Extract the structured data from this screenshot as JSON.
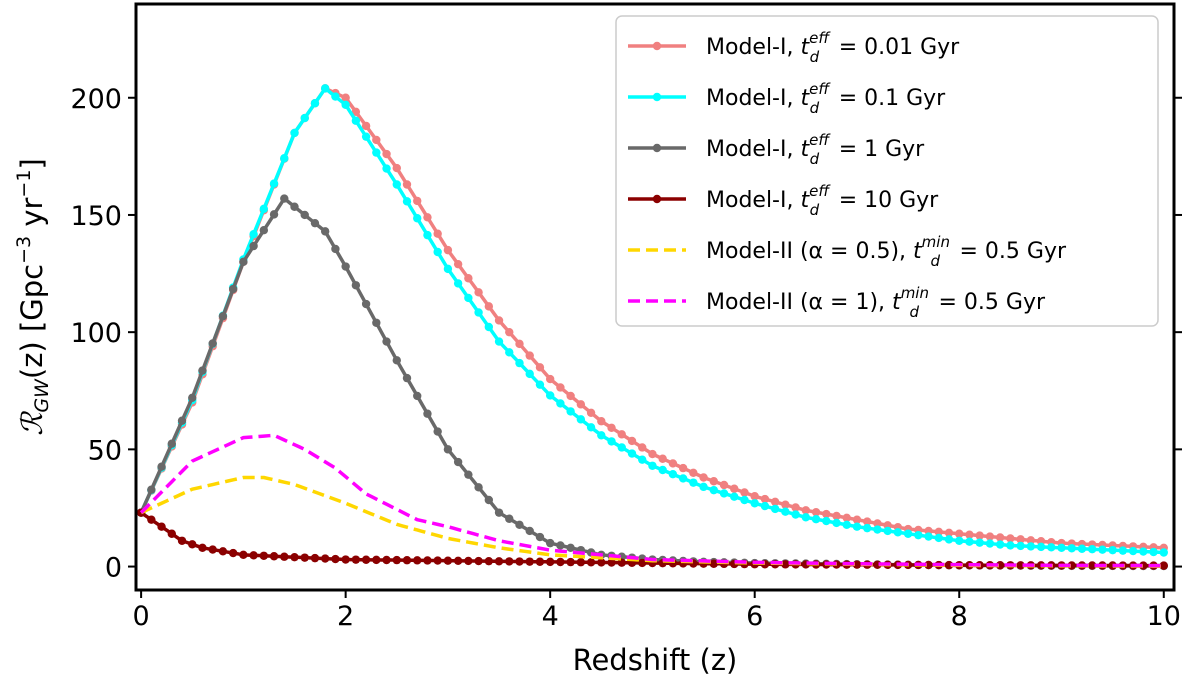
{
  "chart_data": {
    "type": "line",
    "xlabel": "Redshift (z)",
    "ylabel_main": "ℛ",
    "ylabel_sub": "GW",
    "ylabel_rest": "(z) [Gpc",
    "ylabel_exp1": "−3",
    "ylabel_mid": " yr",
    "ylabel_exp2": "−1",
    "ylabel_end": "]",
    "xlim": [
      -0.05,
      10.1
    ],
    "ylim": [
      -10,
      240
    ],
    "xticks": [
      0,
      2,
      4,
      6,
      8,
      10
    ],
    "yticks": [
      0,
      50,
      100,
      150,
      200
    ],
    "x_tick_labels": [
      "0",
      "2",
      "4",
      "6",
      "8",
      "10"
    ],
    "y_tick_labels": [
      "0",
      "50",
      "100",
      "150",
      "200"
    ],
    "legend_position": "top-right",
    "grid": false,
    "series": [
      {
        "legend_parts": [
          "Model-I, ",
          "t",
          "eff",
          "d",
          " = 0.01 Gyr"
        ],
        "color": "#f08080",
        "style": "solid-markers",
        "x": [
          0,
          0.5,
          1.0,
          1.5,
          1.8,
          2.0,
          2.5,
          3.0,
          3.5,
          4.0,
          4.5,
          5.0,
          5.5,
          6.0,
          6.5,
          7.0,
          7.5,
          8.0,
          8.5,
          9.0,
          9.5,
          10.0
        ],
        "y": [
          23,
          70,
          130,
          185,
          204,
          200,
          170,
          135,
          105,
          80,
          62,
          48,
          38,
          30,
          24,
          20,
          16,
          14,
          12,
          10,
          9,
          8
        ]
      },
      {
        "legend_parts": [
          "Model-I, ",
          "t",
          "eff",
          "d",
          " = 0.1 Gyr"
        ],
        "color": "#00ffff",
        "style": "solid-markers",
        "x": [
          0,
          0.5,
          1.0,
          1.5,
          1.8,
          2.0,
          2.5,
          3.0,
          3.5,
          4.0,
          4.5,
          5.0,
          5.5,
          6.0,
          6.5,
          7.0,
          7.5,
          8.0,
          8.5,
          9.0,
          9.5,
          10.0
        ],
        "y": [
          23,
          71,
          131,
          185,
          204,
          197,
          163,
          127,
          96,
          73,
          56,
          43,
          34,
          27,
          21,
          17,
          14,
          11,
          9,
          8,
          7,
          6
        ]
      },
      {
        "legend_parts": [
          "Model-I, ",
          "t",
          "eff",
          "d",
          " = 1 Gyr"
        ],
        "color": "#696969",
        "style": "solid-markers",
        "x": [
          0,
          0.5,
          1.0,
          1.4,
          1.8,
          2.0,
          2.5,
          3.0,
          3.5,
          4.0,
          4.5,
          5.0,
          5.5,
          6.0,
          7.0,
          8.0,
          9.0,
          10.0
        ],
        "y": [
          23,
          72,
          130,
          157,
          143,
          128,
          88,
          50,
          23,
          10,
          5,
          3,
          2,
          1.5,
          1,
          0.5,
          0.3,
          0.2
        ]
      },
      {
        "legend_parts": [
          "Model-I, ",
          "t",
          "eff",
          "d",
          " = 10 Gyr"
        ],
        "color": "#8b0000",
        "style": "solid-markers",
        "x": [
          0,
          0.2,
          0.4,
          0.6,
          0.8,
          1.0,
          1.5,
          2.0,
          3.0,
          4.0,
          5.0,
          6.0,
          7.0,
          8.0,
          9.0,
          10.0
        ],
        "y": [
          23,
          17,
          11,
          8,
          6.5,
          5,
          4,
          3,
          2.5,
          2,
          1.5,
          1,
          0.8,
          0.6,
          0.5,
          0.4
        ]
      },
      {
        "legend_parts": [
          "Model-II (α = 0.5), ",
          "t",
          "min",
          "d",
          " = 0.5 Gyr"
        ],
        "color": "#ffd700",
        "style": "dashed",
        "x": [
          0,
          0.5,
          1.0,
          1.2,
          1.5,
          2.0,
          2.5,
          3.0,
          3.5,
          4.0,
          5.0,
          6.0,
          7.0,
          8.0,
          9.0,
          10.0
        ],
        "y": [
          23,
          33,
          38,
          38,
          35,
          27,
          18,
          12,
          8,
          5,
          2.5,
          1.5,
          1,
          0.5,
          0.3,
          0.2
        ]
      },
      {
        "legend_parts": [
          "Model-II (α = 1), ",
          "t",
          "min",
          "d",
          " = 0.5 Gyr"
        ],
        "color": "#ff00ff",
        "style": "dashed",
        "x": [
          0,
          0.5,
          1.0,
          1.3,
          1.6,
          1.9,
          2.2,
          2.7,
          3.0,
          3.5,
          4.0,
          5.0,
          6.0,
          7.0,
          8.0,
          9.0,
          10.0
        ],
        "y": [
          23,
          45,
          55,
          56,
          50,
          42,
          31,
          20,
          17,
          11,
          7,
          3,
          1.8,
          1.2,
          0.8,
          0.5,
          0.4
        ]
      }
    ]
  }
}
